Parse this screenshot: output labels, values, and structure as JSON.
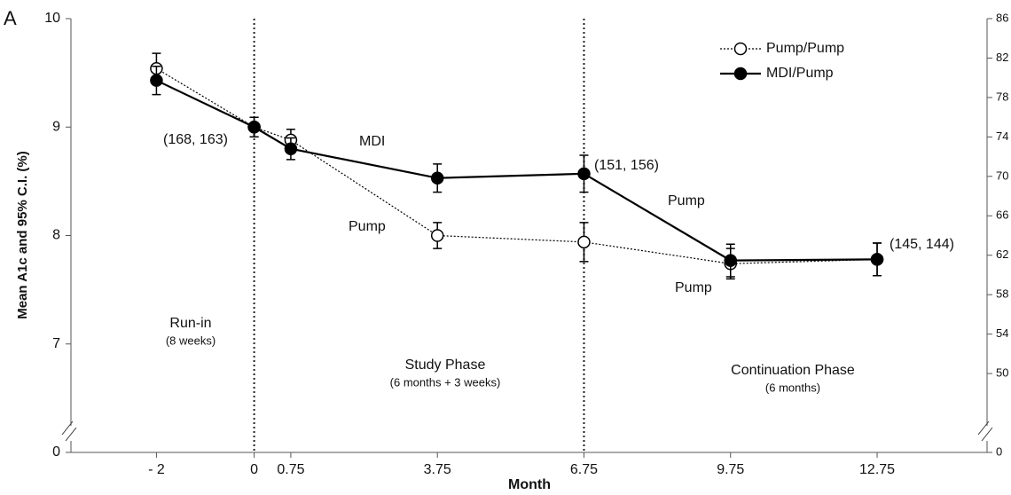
{
  "chart_data": {
    "type": "line",
    "panel_label": "A",
    "xlabel": "Month",
    "ylabel": "Mean A1c and 95% C.I.  (%)",
    "x": [
      -2,
      0,
      0.75,
      3.75,
      6.75,
      9.75,
      12.75
    ],
    "xlim": [
      -3.75,
      15
    ],
    "xticks": [
      {
        "value": -2,
        "label": "- 2"
      },
      0,
      0.75,
      3.75,
      6.75,
      9.75,
      12.75
    ],
    "ylim": [
      0,
      10
    ],
    "y_break": [
      0,
      6
    ],
    "yticks": [
      0,
      7,
      8,
      9,
      10
    ],
    "y2lim": [
      0,
      86
    ],
    "y2_break": [
      0,
      42
    ],
    "y2ticks": [
      0,
      50,
      54,
      58,
      62,
      66,
      70,
      74,
      78,
      82,
      86
    ],
    "phase_lines": [
      0,
      6.75
    ],
    "legend": "upper right",
    "series": [
      {
        "name": "Pump/Pump",
        "color": "#000000",
        "line_style": "dotted",
        "marker": "open",
        "values": [
          9.54,
          9.0,
          8.88,
          8.0,
          7.94,
          7.74,
          7.78
        ],
        "errors": [
          0.14,
          0.09,
          0.1,
          0.12,
          0.18,
          0.14,
          0.15
        ]
      },
      {
        "name": "MDI/Pump",
        "color": "#000000",
        "line_style": "solid",
        "marker": "filled",
        "values": [
          9.43,
          9.0,
          8.8,
          8.53,
          8.57,
          7.77,
          7.78
        ],
        "errors": [
          0.13,
          0.09,
          0.1,
          0.13,
          0.17,
          0.15,
          0.15
        ]
      }
    ],
    "annotations": [
      "(168, 163)",
      "MDI",
      "Pump",
      "(151, 156)",
      "Pump",
      "Pump",
      "(145, 144)",
      "Run-in",
      "(8 weeks)",
      "Study Phase",
      "(6 months + 3 weeks)",
      "Continuation Phase",
      "(6 months)"
    ]
  }
}
